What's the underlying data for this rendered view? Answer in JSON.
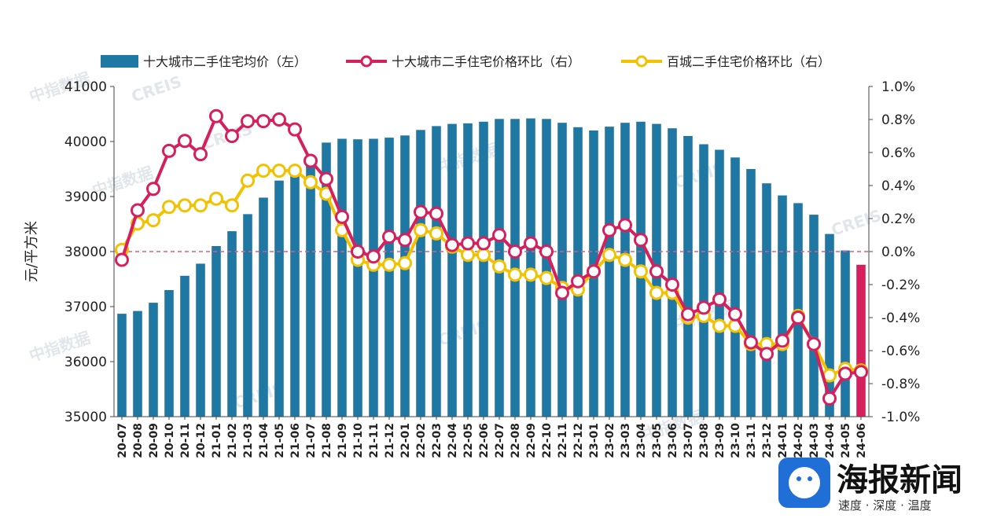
{
  "chart_data": {
    "type": "bar",
    "categories": [
      "20-07",
      "20-08",
      "20-09",
      "20-10",
      "20-11",
      "20-12",
      "21-01",
      "21-02",
      "21-03",
      "21-04",
      "21-05",
      "21-06",
      "21-07",
      "21-08",
      "21-09",
      "21-10",
      "21-11",
      "21-12",
      "22-01",
      "22-02",
      "22-03",
      "22-04",
      "22-05",
      "22-06",
      "22-07",
      "22-08",
      "22-09",
      "22-10",
      "22-11",
      "22-12",
      "23-01",
      "23-02",
      "23-03",
      "23-04",
      "23-05",
      "23-06",
      "23-07",
      "23-08",
      "23-09",
      "23-10",
      "23-11",
      "23-12",
      "24-01",
      "24-02",
      "24-03",
      "24-04",
      "24-05",
      "24-06"
    ],
    "series": [
      {
        "name": "十大城市二手住宅均价（左）",
        "axis": "left",
        "type": "bar",
        "color": "#1f77a4",
        "last_color": "#d6205e",
        "values": [
          36870,
          36920,
          37070,
          37300,
          37560,
          37780,
          38100,
          38370,
          38680,
          38980,
          39290,
          39510,
          39740,
          39980,
          40050,
          40040,
          40050,
          40070,
          40110,
          40210,
          40280,
          40320,
          40330,
          40360,
          40410,
          40410,
          40420,
          40410,
          40340,
          40260,
          40200,
          40270,
          40340,
          40360,
          40320,
          40240,
          40100,
          39950,
          39850,
          39710,
          39500,
          39240,
          39020,
          38880,
          38670,
          38320,
          38020,
          37760
        ]
      },
      {
        "name": "十大城市二手住宅价格环比（右）",
        "axis": "right",
        "type": "line",
        "color": "#d6205e",
        "values": [
          -0.05,
          0.25,
          0.38,
          0.61,
          0.67,
          0.59,
          0.82,
          0.7,
          0.79,
          0.79,
          0.8,
          0.74,
          0.55,
          0.44,
          0.21,
          0.0,
          -0.03,
          0.09,
          0.07,
          0.24,
          0.23,
          0.04,
          0.05,
          0.05,
          0.1,
          0.0,
          0.05,
          0.0,
          -0.25,
          -0.18,
          -0.12,
          0.13,
          0.16,
          0.07,
          -0.12,
          -0.2,
          -0.38,
          -0.34,
          -0.29,
          -0.38,
          -0.55,
          -0.62,
          -0.54,
          -0.4,
          -0.56,
          -0.89,
          -0.74,
          -0.73
        ]
      },
      {
        "name": "百城二手住宅价格环比（右）",
        "axis": "right",
        "type": "line",
        "color": "#f2c200",
        "values": [
          0.01,
          0.17,
          0.19,
          0.27,
          0.28,
          0.28,
          0.32,
          0.28,
          0.43,
          0.49,
          0.49,
          0.49,
          0.42,
          0.35,
          0.13,
          -0.05,
          -0.08,
          -0.08,
          -0.07,
          0.13,
          0.11,
          0.03,
          -0.02,
          -0.02,
          -0.09,
          -0.14,
          -0.14,
          -0.16,
          -0.22,
          -0.23,
          -0.12,
          -0.02,
          -0.05,
          -0.12,
          -0.25,
          -0.25,
          -0.4,
          -0.39,
          -0.45,
          -0.45,
          -0.56,
          -0.56,
          -0.56,
          -0.39,
          -0.56,
          -0.75,
          -0.71,
          -0.72
        ]
      }
    ],
    "left_axis": {
      "label": "元/平方米",
      "min": 35000,
      "max": 41000,
      "ticks": [
        35000,
        36000,
        37000,
        38000,
        39000,
        40000,
        41000
      ],
      "tick_labels": [
        "35000",
        "36000",
        "37000",
        "38000",
        "39000",
        "40000",
        "41000"
      ]
    },
    "right_axis": {
      "min": -1.0,
      "max": 1.0,
      "ticks": [
        -1.0,
        -0.8,
        -0.6,
        -0.4,
        -0.2,
        0.0,
        0.2,
        0.4,
        0.6,
        0.8,
        1.0
      ],
      "tick_labels": [
        "-1.0%",
        "-0.8%",
        "-0.6%",
        "-0.4%",
        "-0.2%",
        "0.0%",
        "0.2%",
        "0.4%",
        "0.6%",
        "0.8%",
        "1.0%"
      ]
    },
    "zero_line": {
      "color": "#d65f8a",
      "style": "dashed"
    },
    "legend_position": "top",
    "grid": false
  },
  "watermark_text": [
    "中指数据",
    "CREIS"
  ],
  "logo": {
    "title": "海报新闻",
    "subtitle": "速度 · 深度 · 温度"
  }
}
